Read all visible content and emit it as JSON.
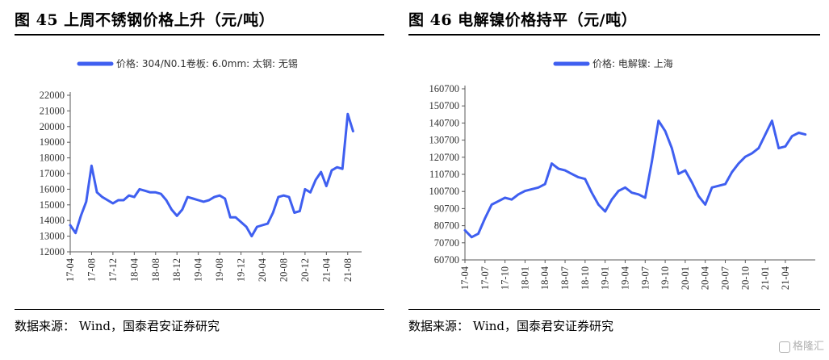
{
  "figures": [
    {
      "title": "图 45  上周不锈钢价格上升（元/吨）",
      "source": "数据来源： Wind，国泰君安证券研究"
    },
    {
      "title": "图 46  电解镍价格持平（元/吨）",
      "source": "数据来源： Wind，国泰君安证券研究"
    }
  ],
  "watermark": "格隆汇",
  "colors": {
    "line": "#3F5FF0",
    "axis": "#595959",
    "rule": "#000000"
  },
  "chart_data": [
    {
      "type": "line",
      "title": "",
      "xlabel": "",
      "ylabel": "",
      "ylim": [
        12000,
        22000
      ],
      "yticks": [
        "12000",
        "13000",
        "14000",
        "15000",
        "16000",
        "17000",
        "18000",
        "19000",
        "20000",
        "21000",
        "22000"
      ],
      "xticks": [
        "17-04",
        "17-08",
        "17-12",
        "18-04",
        "18-08",
        "18-12",
        "19-04",
        "19-08",
        "19-12",
        "20-04",
        "20-08",
        "20-12",
        "21-04",
        "21-08"
      ],
      "legend": "top",
      "series": [
        {
          "name": "价格: 304/N0.1卷板: 6.0mm: 太钢: 无锡",
          "x": [
            "17-04",
            "17-05",
            "17-06",
            "17-07",
            "17-08",
            "17-09",
            "17-10",
            "17-11",
            "17-12",
            "18-01",
            "18-02",
            "18-03",
            "18-04",
            "18-05",
            "18-06",
            "18-07",
            "18-08",
            "18-09",
            "18-10",
            "18-11",
            "18-12",
            "19-01",
            "19-02",
            "19-03",
            "19-04",
            "19-05",
            "19-06",
            "19-07",
            "19-08",
            "19-09",
            "19-10",
            "19-11",
            "19-12",
            "20-01",
            "20-02",
            "20-03",
            "20-04",
            "20-05",
            "20-06",
            "20-07",
            "20-08",
            "20-09",
            "20-10",
            "20-11",
            "20-12",
            "21-01",
            "21-02",
            "21-03",
            "21-04",
            "21-05",
            "21-06",
            "21-07",
            "21-08",
            "21-09"
          ],
          "values": [
            13700,
            13200,
            14300,
            15200,
            17500,
            15800,
            15500,
            15300,
            15100,
            15300,
            15300,
            15600,
            15500,
            16000,
            15900,
            15800,
            15800,
            15700,
            15300,
            14700,
            14300,
            14700,
            15500,
            15400,
            15300,
            15200,
            15300,
            15500,
            15600,
            15400,
            14200,
            14200,
            13900,
            13600,
            13000,
            13600,
            13700,
            13800,
            14500,
            15500,
            15600,
            15500,
            14500,
            14600,
            16000,
            15800,
            16600,
            17100,
            16200,
            17200,
            17400,
            17300,
            20800,
            19700
          ]
        }
      ]
    },
    {
      "type": "line",
      "title": "",
      "xlabel": "",
      "ylabel": "",
      "ylim": [
        60700,
        160700
      ],
      "yticks": [
        "60700",
        "70700",
        "80700",
        "90700",
        "100700",
        "110700",
        "120700",
        "130700",
        "140700",
        "150700",
        "160700"
      ],
      "xticks": [
        "17-04",
        "17-07",
        "17-10",
        "18-01",
        "18-04",
        "18-07",
        "18-10",
        "19-01",
        "19-04",
        "19-07",
        "19-10",
        "20-01",
        "20-04",
        "20-07",
        "20-10",
        "21-01",
        "21-04"
      ],
      "legend": "top",
      "series": [
        {
          "name": "价格: 电解镍: 上海",
          "x": [
            "17-04",
            "17-05",
            "17-06",
            "17-07",
            "17-08",
            "17-09",
            "17-10",
            "17-11",
            "17-12",
            "18-01",
            "18-02",
            "18-03",
            "18-04",
            "18-05",
            "18-06",
            "18-07",
            "18-08",
            "18-09",
            "18-10",
            "18-11",
            "18-12",
            "19-01",
            "19-02",
            "19-03",
            "19-04",
            "19-05",
            "19-06",
            "19-07",
            "19-08",
            "19-09",
            "19-10",
            "19-11",
            "19-12",
            "20-01",
            "20-02",
            "20-03",
            "20-04",
            "20-05",
            "20-06",
            "20-07",
            "20-08",
            "20-09",
            "20-10",
            "20-11",
            "20-12",
            "21-01",
            "21-02",
            "21-03",
            "21-04",
            "21-05",
            "21-06",
            "21-07"
          ],
          "values": [
            78000,
            74000,
            76000,
            85000,
            93000,
            95000,
            97000,
            96000,
            99000,
            101000,
            102000,
            103000,
            105000,
            117000,
            114000,
            113000,
            111000,
            109000,
            108000,
            100000,
            93000,
            89000,
            96000,
            101000,
            103000,
            100000,
            99000,
            97000,
            118000,
            142000,
            136000,
            126000,
            111000,
            113000,
            106000,
            98000,
            93000,
            103000,
            104000,
            105000,
            112000,
            117000,
            121000,
            123000,
            126000,
            134000,
            142000,
            126000,
            127000,
            133000,
            135000,
            134000
          ]
        }
      ]
    }
  ]
}
